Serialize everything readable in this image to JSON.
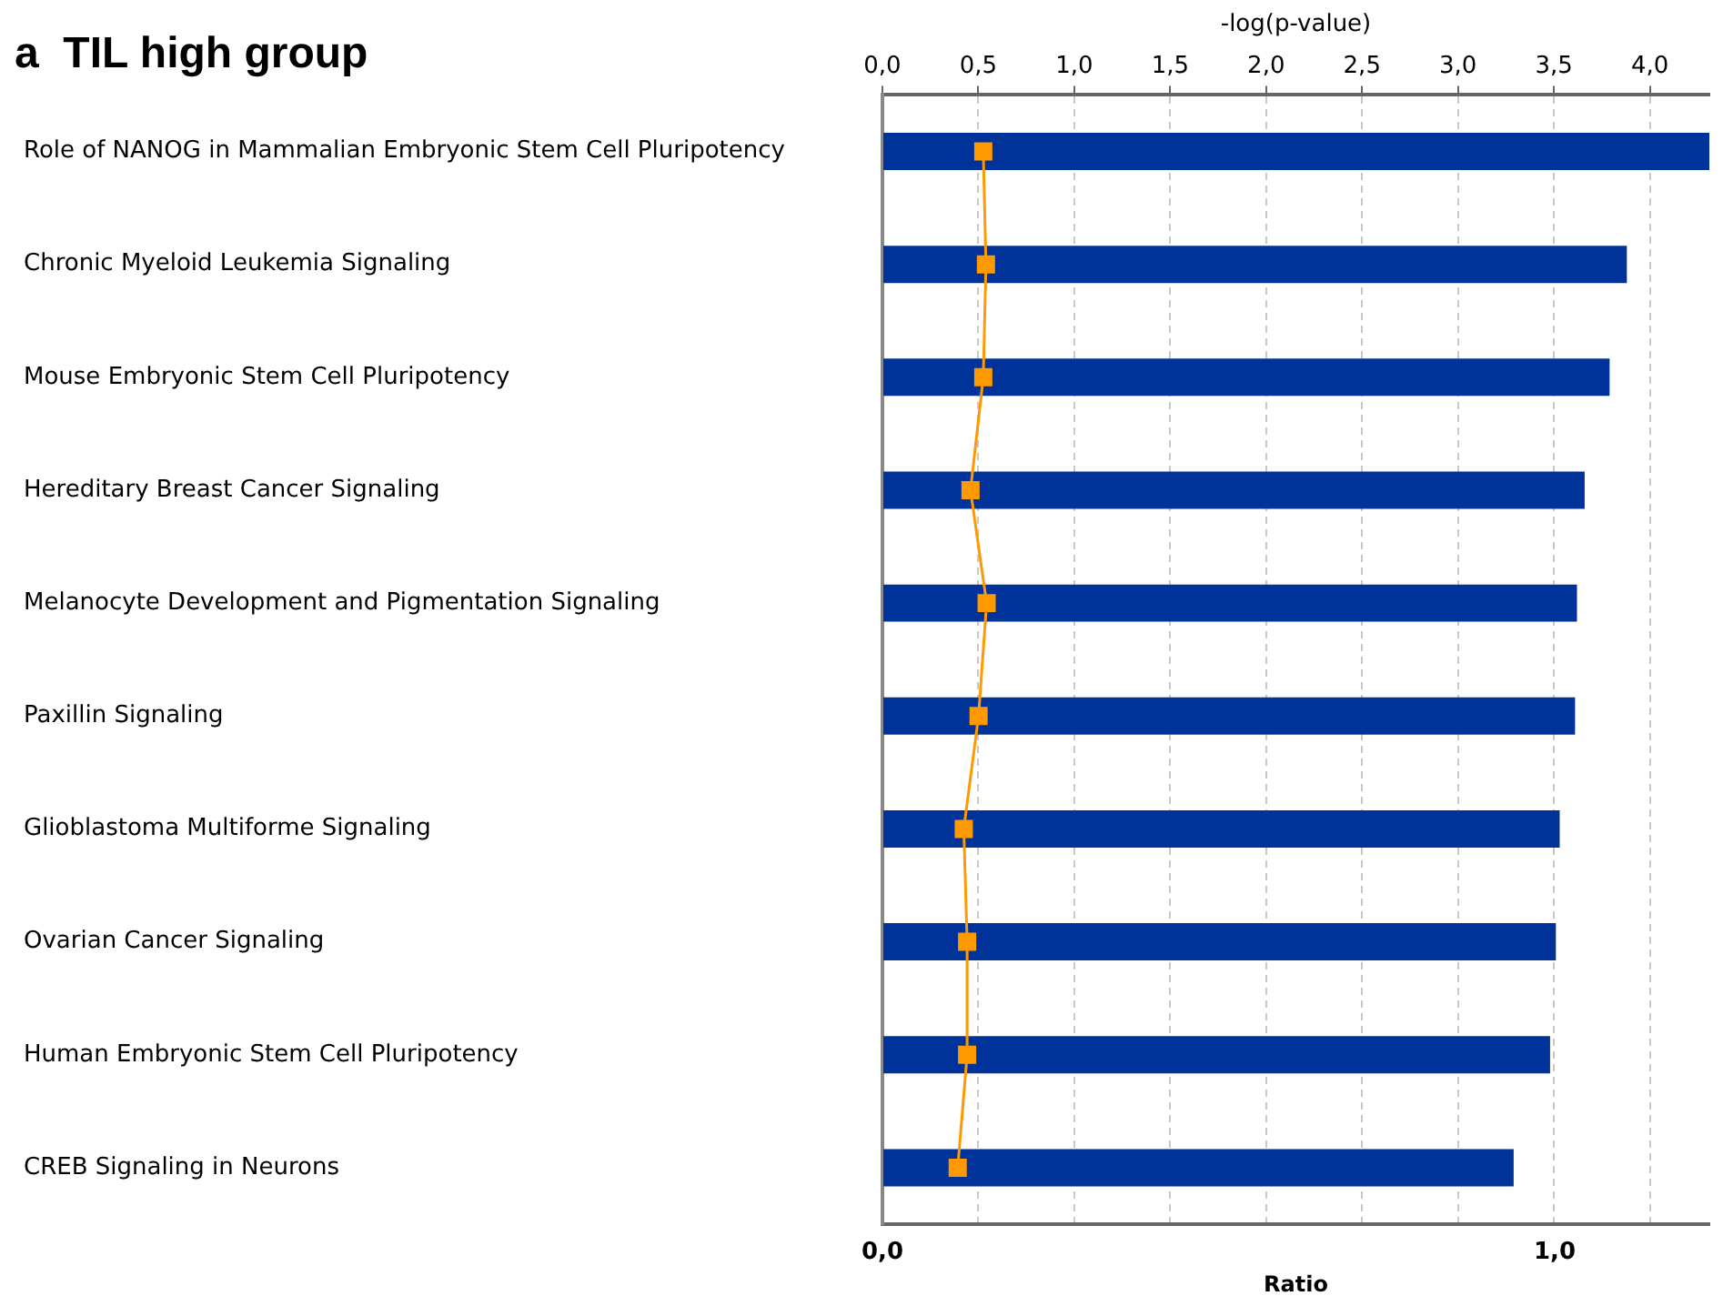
{
  "chart_data": {
    "type": "bar",
    "orientation": "horizontal",
    "title": "a  TIL high group",
    "categories": [
      "Role of NANOG in Mammalian Embryonic Stem Cell Pluripotency",
      "Chronic Myeloid Leukemia Signaling",
      "Mouse Embryonic Stem Cell Pluripotency",
      "Hereditary Breast Cancer Signaling",
      "Melanocyte Development and Pigmentation Signaling",
      "Paxillin Signaling",
      "Glioblastoma Multiforme Signaling",
      "Ovarian Cancer Signaling",
      "Human Embryonic Stem Cell Pluripotency",
      "CREB Signaling in Neurons"
    ],
    "series": [
      {
        "axis": "x2",
        "color": "#003399",
        "values": [
          4.31,
          3.88,
          3.79,
          3.66,
          3.62,
          3.61,
          3.53,
          3.51,
          3.48,
          3.29
        ]
      },
      {
        "type": "line",
        "color": "#ff9900",
        "marker": "square",
        "values": [
          0.15,
          0.154,
          0.15,
          0.131,
          0.155,
          0.143,
          0.121,
          0.126,
          0.126,
          0.112
        ]
      }
    ],
    "x2label": "-log(p-value)",
    "x2lim": [
      0,
      4.31
    ],
    "x2ticks": [
      {
        "value": 0,
        "label": "0,0"
      },
      {
        "value": 0.5,
        "label": "0,5"
      },
      {
        "value": 1,
        "label": "1,0"
      },
      {
        "value": 1.5,
        "label": "1,5"
      },
      {
        "value": 2,
        "label": "2,0"
      },
      {
        "value": 2.5,
        "label": "2,5"
      },
      {
        "value": 3,
        "label": "3,0"
      },
      {
        "value": 3.5,
        "label": "3,5"
      },
      {
        "value": 4,
        "label": "4,0"
      }
    ],
    "xlabel": "Ratio",
    "xlim": [
      0,
      1.23
    ],
    "xticks": [
      {
        "value": 0,
        "label": "0,0"
      },
      {
        "value": 1,
        "label": "1,0"
      }
    ],
    "grid": "x",
    "legend": false
  }
}
